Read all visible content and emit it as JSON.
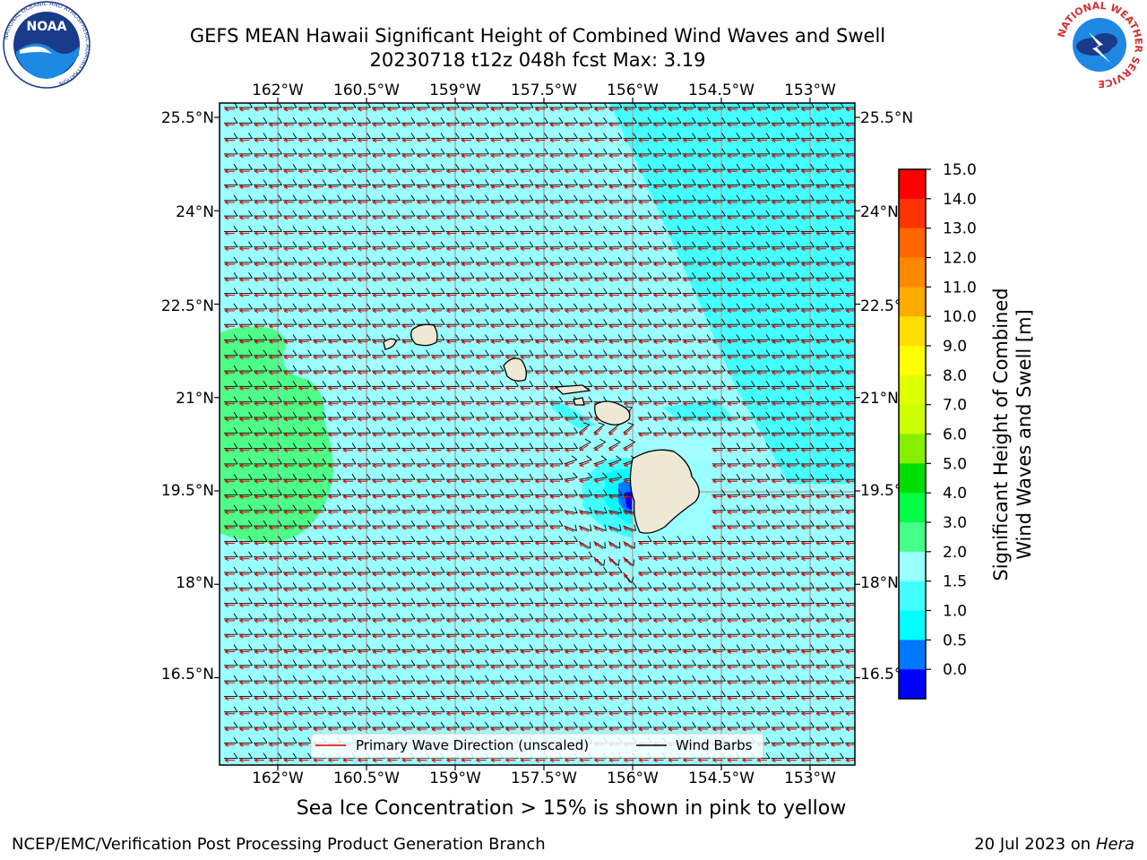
{
  "header": {
    "title_line1": "GEFS MEAN Hawaii Significant Height of Combined Wind Waves and Swell",
    "title_line2": "20230718 t12z 048h fcst   Max: 3.19"
  },
  "logos": {
    "left": {
      "name": "NOAA",
      "ring_text": "NATIONAL OCEANIC AND ATMOSPHERIC ADMINISTRATION",
      "bottom_text": "U.S. DEPARTMENT OF COMMERCE"
    },
    "right": {
      "ring_text": "NATIONAL WEATHER SERVICE"
    }
  },
  "map": {
    "lon_ticks": [
      "162°W",
      "160.5°W",
      "159°W",
      "157.5°W",
      "156°W",
      "154.5°W",
      "153°W"
    ],
    "lat_ticks": [
      "25.5°N",
      "24°N",
      "22.5°N",
      "21°N",
      "19.5°N",
      "18°N",
      "16.5°N"
    ],
    "lon_values": [
      -162,
      -160.5,
      -159,
      -157.5,
      -156,
      -154.5,
      -153
    ],
    "lat_values": [
      25.5,
      24,
      22.5,
      21,
      19.5,
      18,
      16.5
    ],
    "legend": {
      "items": [
        {
          "label": "Primary Wave Direction (unscaled)",
          "color": "#dd0000"
        },
        {
          "label": "Wind Barbs",
          "color": "#000000"
        }
      ]
    },
    "land_color": "#eee8d5",
    "ocean_base_color": "#99ffff"
  },
  "colorbar": {
    "label_line1": "Significant Height of Combined",
    "label_line2": "Wind Waves and Swell [m]",
    "ticks": [
      "15.0",
      "14.0",
      "13.0",
      "12.0",
      "11.0",
      "10.0",
      "9.0",
      "8.0",
      "7.0",
      "6.0",
      "5.0",
      "4.0",
      "3.0",
      "2.0",
      "1.5",
      "1.0",
      "0.5",
      "0.0"
    ],
    "colors_top_to_bottom": [
      "#ff0000",
      "#ff3300",
      "#ff6600",
      "#ff8800",
      "#ffaa00",
      "#ffdd00",
      "#ffff00",
      "#ddff00",
      "#ccff00",
      "#88ee00",
      "#00dd00",
      "#00ff44",
      "#44ff88",
      "#99ffff",
      "#44ffff",
      "#00ffff",
      "#0077ff",
      "#0000ff"
    ]
  },
  "notes": {
    "sea_ice": "Sea Ice Concentration > 15% is shown in pink to yellow"
  },
  "footer": {
    "left": "NCEP/EMC/Verification Post Processing Product Generation Branch",
    "date": "20 Jul 2023 on ",
    "machine": "Hera"
  }
}
